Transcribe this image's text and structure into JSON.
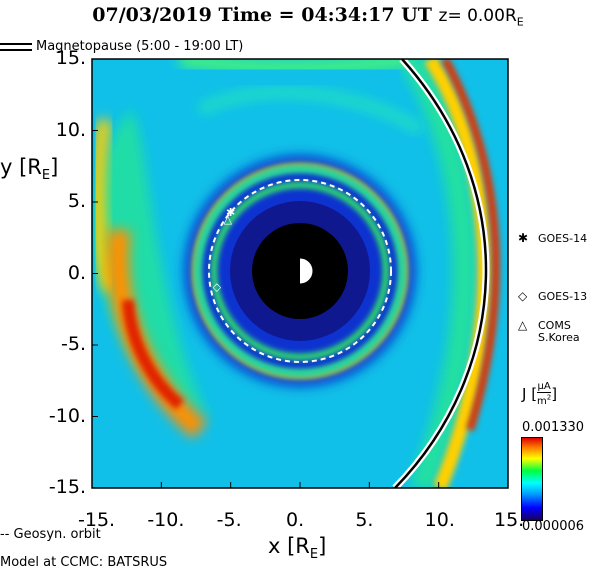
{
  "header": {
    "title_main": "07/03/2019 Time = 04:34:17 UT",
    "title_z": "z= 0.00R",
    "title_z_sub": "E"
  },
  "legend": {
    "magnetopause": "Magnetopause (5:00 - 19:00 LT)",
    "geosync": "-- Geosyn. orbit"
  },
  "model_label": "Model at CCMC: BATSRUS",
  "satellites": [
    {
      "symbol": "✱",
      "name": "GOES-14"
    },
    {
      "symbol": "◇",
      "name": "GOES-13"
    },
    {
      "symbol": "△",
      "name": "COMS",
      "name2": "S.Korea"
    }
  ],
  "colorbar": {
    "label": "J [",
    "label_num": "μA",
    "label_den": "m",
    "label_den_exp": "2",
    "label_close": "]",
    "max": "0.001330",
    "min": "0.000006"
  },
  "chart_data": {
    "type": "heatmap",
    "xlabel": "x [R",
    "xlabel_sub": "E",
    "ylabel": "y [R",
    "ylabel_sub": "E",
    "xlim": [
      -15,
      15
    ],
    "ylim": [
      -15,
      15
    ],
    "xticks": [
      "-15.",
      "-10.",
      "-5.",
      "0.",
      "5.",
      "10.",
      "15."
    ],
    "yticks": [
      "15.",
      "10.",
      "5.",
      "0.",
      "-5.",
      "-10.",
      "-15."
    ],
    "grid": false,
    "geosync_radius": 6.6,
    "inner_boundary_radius": 3.5,
    "satellites_xy": [
      [
        -5.0,
        4.3
      ],
      [
        -6.0,
        -0.9
      ],
      [
        -5.2,
        3.8
      ]
    ]
  }
}
